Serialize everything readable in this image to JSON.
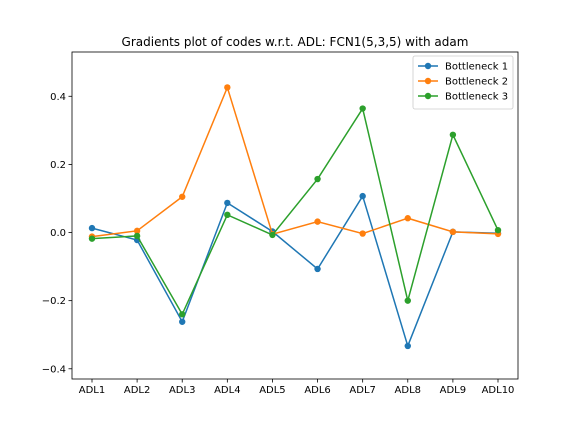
{
  "chart_data": {
    "type": "line",
    "title": "Gradients plot of codes w.r.t. ADL: FCN1(5,3,5) with adam",
    "xlabel": "",
    "ylabel": "",
    "categories": [
      "ADL1",
      "ADL2",
      "ADL3",
      "ADL4",
      "ADL5",
      "ADL6",
      "ADL7",
      "ADL8",
      "ADL9",
      "ADL10"
    ],
    "ylim": [
      -0.43,
      0.53
    ],
    "yticks": [
      -0.4,
      -0.2,
      0.0,
      0.2,
      0.4
    ],
    "ytick_labels": [
      "−0.4",
      "−0.2",
      "0.0",
      "0.2",
      "0.4"
    ],
    "grid": false,
    "legend_position": "top-right",
    "series": [
      {
        "name": "Bottleneck 1",
        "color": "#1f77b4",
        "values": [
          0.013,
          -0.022,
          -0.262,
          0.087,
          0.003,
          -0.107,
          0.107,
          -0.333,
          0.002,
          -0.002
        ]
      },
      {
        "name": "Bottleneck 2",
        "color": "#ff7f0e",
        "values": [
          -0.012,
          0.005,
          0.105,
          0.426,
          -0.005,
          0.032,
          -0.003,
          0.042,
          0.002,
          -0.004
        ]
      },
      {
        "name": "Bottleneck 3",
        "color": "#2ca02c",
        "values": [
          -0.018,
          -0.01,
          -0.24,
          0.052,
          -0.007,
          0.157,
          0.364,
          -0.2,
          0.287,
          0.007
        ]
      }
    ]
  }
}
